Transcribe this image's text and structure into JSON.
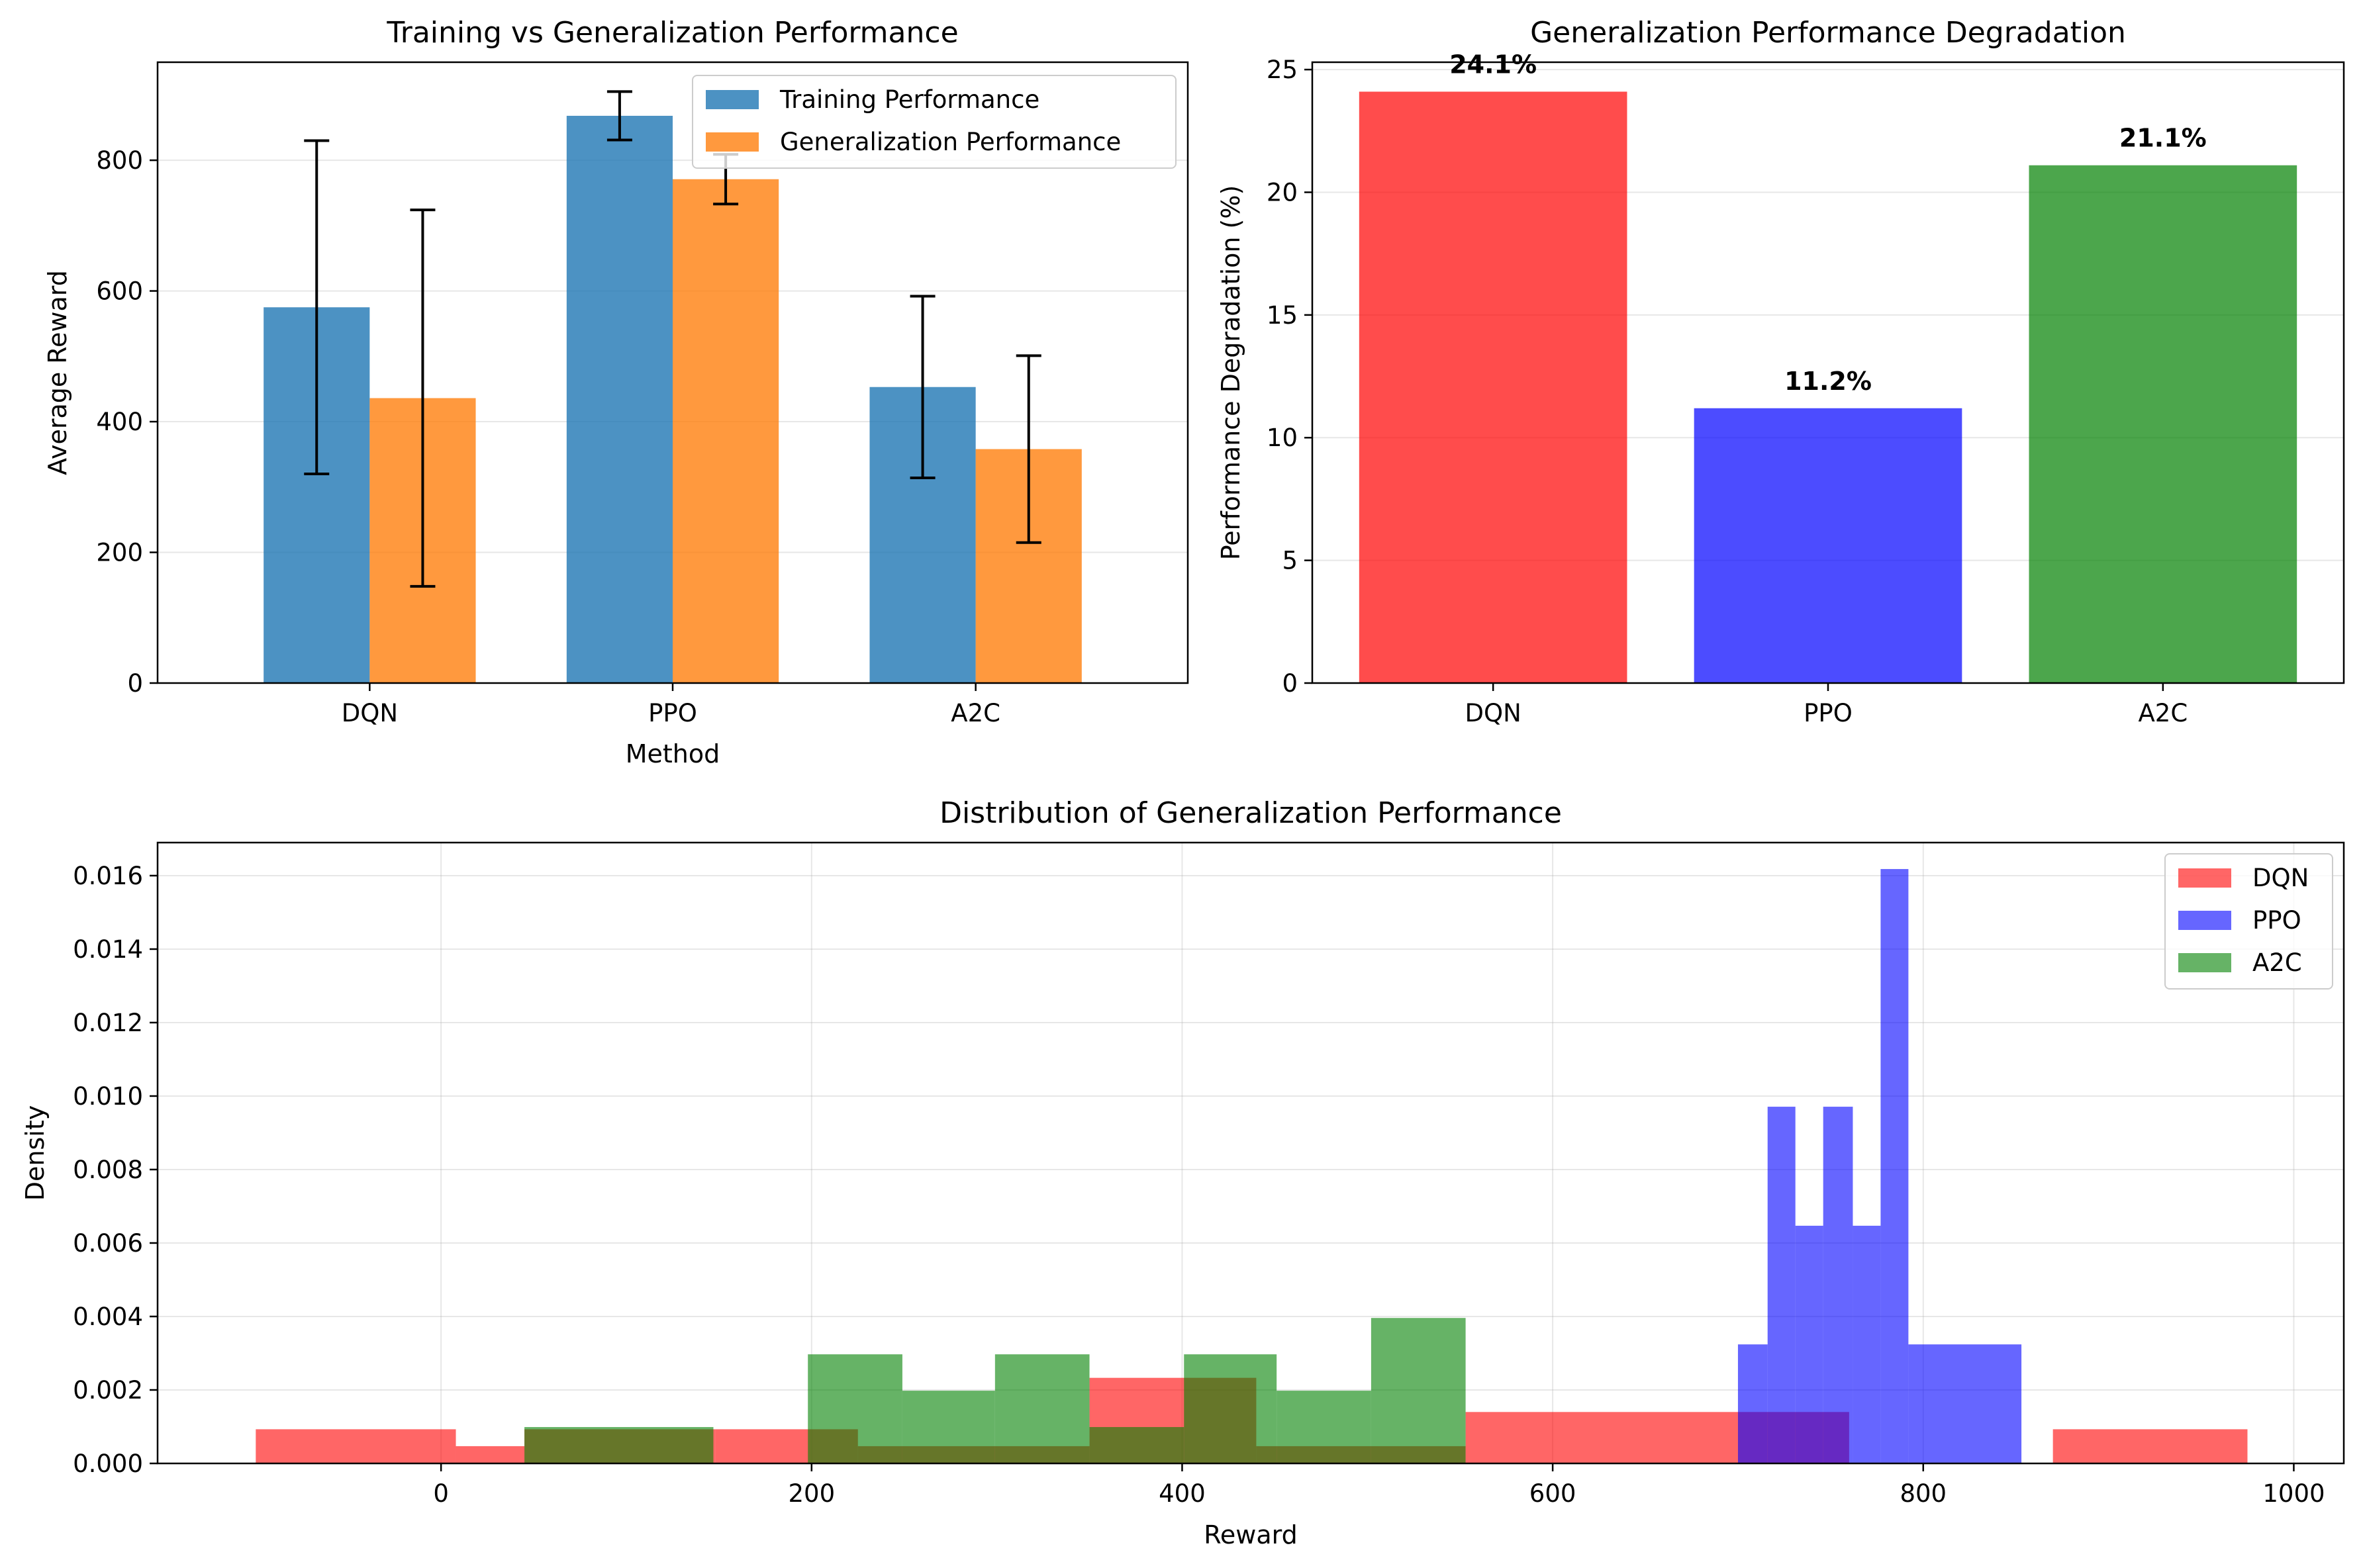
{
  "chart_data": [
    {
      "type": "bar",
      "title": "Training vs Generalization Performance",
      "xlabel": "Method",
      "ylabel": "Average Reward",
      "categories": [
        "DQN",
        "PPO",
        "A2C"
      ],
      "ylim": [
        0,
        950
      ],
      "yticks": [
        0,
        200,
        400,
        600,
        800
      ],
      "grid": true,
      "legend_position": "top-right",
      "series": [
        {
          "name": "Training Performance",
          "color": "#1f77b4",
          "values": [
            575,
            868,
            453
          ],
          "errors": [
            255,
            37,
            139
          ]
        },
        {
          "name": "Generalization Performance",
          "color": "#ff7f0e",
          "values": [
            436,
            771,
            358
          ],
          "errors": [
            288,
            38,
            143
          ]
        }
      ]
    },
    {
      "type": "bar",
      "title": "Generalization Performance Degradation",
      "xlabel": "",
      "ylabel": "Performance Degradation (%)",
      "categories": [
        "DQN",
        "PPO",
        "A2C"
      ],
      "values": [
        24.1,
        11.2,
        21.1
      ],
      "value_labels": [
        "24.1%",
        "11.2%",
        "21.1%"
      ],
      "colors": [
        "#ff0000",
        "#0000ff",
        "#008000"
      ],
      "ylim": [
        0,
        25.3
      ],
      "yticks": [
        0,
        5,
        10,
        15,
        20,
        25
      ],
      "grid": true
    },
    {
      "type": "histogram",
      "title": "Distribution of Generalization Performance",
      "xlabel": "Reward",
      "ylabel": "Density",
      "xlim": [
        -153,
        1027
      ],
      "ylim": [
        0,
        0.0169
      ],
      "xticks": [
        0,
        200,
        400,
        600,
        800,
        1000
      ],
      "yticks": [
        0,
        0.002,
        0.004,
        0.006,
        0.008,
        0.01,
        0.012,
        0.014,
        0.016
      ],
      "ytick_labels": [
        "0.000",
        "0.002",
        "0.004",
        "0.006",
        "0.008",
        "0.010",
        "0.012",
        "0.014",
        "0.016"
      ],
      "grid": true,
      "legend_position": "top-right",
      "series": [
        {
          "name": "DQN",
          "color": "#ff0000",
          "bins": [
            [
              -100,
              8,
              0.00093
            ],
            [
              8,
              45,
              0.00047
            ],
            [
              45,
              148,
              0.00093
            ],
            [
              148,
              200,
              0.00093
            ],
            [
              200,
              225,
              0.00093
            ],
            [
              225,
              350,
              0.00047
            ],
            [
              350,
              400,
              0.00233
            ],
            [
              400,
              440,
              0.00233
            ],
            [
              440,
              553,
              0.00047
            ],
            [
              553,
              700,
              0.0014
            ],
            [
              700,
              760,
              0.0014
            ],
            [
              870,
              975,
              0.00093
            ]
          ]
        },
        {
          "name": "PPO",
          "color": "#0000ff",
          "bins": [
            [
              700,
              716,
              0.00324
            ],
            [
              716,
              731,
              0.00971
            ],
            [
              731,
              746,
              0.00647
            ],
            [
              746,
              762,
              0.00971
            ],
            [
              762,
              777,
              0.00647
            ],
            [
              777,
              792,
              0.01618
            ],
            [
              792,
              853,
              0.00324
            ]
          ]
        },
        {
          "name": "A2C",
          "color": "#008000",
          "bins": [
            [
              45,
              147,
              0.00099
            ],
            [
              198,
              249,
              0.00297
            ],
            [
              249,
              299,
              0.00198
            ],
            [
              299,
              350,
              0.00297
            ],
            [
              350,
              401,
              0.00099
            ],
            [
              401,
              451,
              0.00297
            ],
            [
              451,
              502,
              0.00198
            ],
            [
              502,
              553,
              0.00396
            ]
          ]
        }
      ]
    }
  ]
}
